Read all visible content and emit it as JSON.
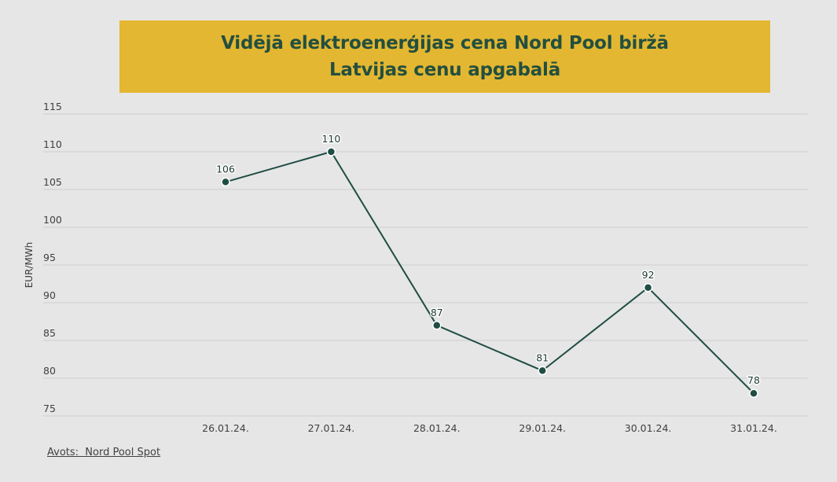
{
  "title": {
    "line1": "Vidējā elektroenerģijas cena Nord Pool biržā",
    "line2": "Latvijas cenu apgabalā"
  },
  "source": "Avots:  Nord Pool Spot",
  "colors": {
    "title_background": "#e3b731",
    "title_text": "#234f3f",
    "line": "#1f4d44",
    "background": "#e6e6e6",
    "grid": "#cfcfcf"
  },
  "chart_data": {
    "type": "line",
    "title": "Vidējā elektroenerģijas cena Nord Pool biržā Latvijas cenu apgabalā",
    "xlabel": "",
    "ylabel": "EUR/MWh",
    "categories": [
      "26.01.24.",
      "27.01.24.",
      "28.01.24.",
      "29.01.24.",
      "30.01.24.",
      "31.01.24."
    ],
    "values": [
      106,
      110,
      87,
      81,
      92,
      78
    ],
    "data_labels": [
      "106",
      "110",
      "87",
      "81",
      "92",
      "78"
    ],
    "ylim": [
      75,
      115
    ],
    "yticks": [
      "75",
      "80",
      "85",
      "90",
      "95",
      "100",
      "105",
      "110",
      "115"
    ],
    "grid": "horizontal",
    "legend": "none"
  }
}
